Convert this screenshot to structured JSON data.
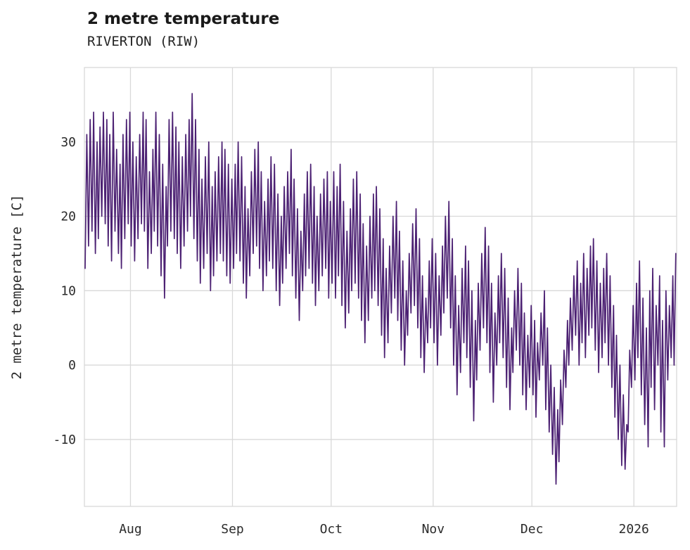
{
  "header": {
    "title": "2 metre temperature",
    "subtitle": "RIVERTON (RIW)"
  },
  "chart_data": {
    "type": "line",
    "title": "2 metre temperature",
    "subtitle": "RIVERTON (RIW)",
    "ylabel": "2 metre temperature [C]",
    "xlabel": "",
    "line_color": "#4c2173",
    "grid_color": "#d9d9d9",
    "background": "#ffffff",
    "legend": "none",
    "grid": true,
    "ylim": [
      -19,
      40
    ],
    "xlim": [
      0,
      180
    ],
    "y_ticks": [
      -10,
      0,
      10,
      20,
      30
    ],
    "x_ticks": [
      {
        "label": "Aug",
        "day": 14
      },
      {
        "label": "Sep",
        "day": 45
      },
      {
        "label": "Oct",
        "day": 75
      },
      {
        "label": "Nov",
        "day": 106
      },
      {
        "label": "Dec",
        "day": 136
      },
      {
        "label": "2026",
        "day": 167
      }
    ],
    "sampling": "daily min/max envelope of sub-daily temperature, day 0 = mid-July",
    "daily_max": [
      31,
      33,
      34,
      30,
      32,
      34,
      33,
      31,
      34,
      29,
      27,
      31,
      33,
      34,
      30,
      28,
      31,
      34,
      33,
      26,
      29,
      34,
      31,
      27,
      24,
      33,
      34,
      32,
      30,
      28,
      31,
      33,
      36.5,
      33,
      29,
      25,
      28,
      30,
      24,
      26,
      28,
      30,
      29,
      27,
      25,
      27,
      30,
      28,
      24,
      21,
      26,
      29,
      30,
      26,
      22,
      25,
      28,
      27,
      23,
      20,
      24,
      26,
      29,
      25,
      21,
      18,
      23,
      26,
      27,
      24,
      20,
      23,
      25,
      26,
      22,
      26,
      24,
      27,
      22,
      18,
      21,
      25,
      26,
      23,
      19,
      16,
      20,
      23,
      24,
      21,
      17,
      13,
      16,
      20,
      22,
      18,
      14,
      10,
      15,
      19,
      21,
      17,
      12,
      9,
      14,
      17,
      15,
      12,
      16,
      20,
      22,
      17,
      12,
      8,
      13,
      16,
      14,
      10,
      6,
      11,
      15,
      18.5,
      16,
      11,
      7,
      12,
      15,
      13,
      9,
      5,
      10,
      13,
      11,
      7,
      4,
      8,
      6,
      3,
      7,
      10,
      5,
      0,
      -3,
      -6,
      -2,
      2,
      6,
      9,
      12,
      14,
      11,
      15,
      13,
      16,
      17,
      14,
      11,
      13,
      15,
      12,
      8,
      4,
      0,
      -4,
      -8,
      2,
      8,
      11,
      14,
      9,
      5,
      10,
      13,
      8,
      12,
      6,
      10,
      8,
      12,
      15
    ],
    "daily_min": [
      13,
      16,
      18,
      15,
      17,
      20,
      19,
      16,
      14,
      18,
      15,
      13,
      17,
      19,
      16,
      14,
      17,
      19,
      18,
      13,
      15,
      18,
      16,
      12,
      9,
      16,
      18,
      17,
      15,
      13,
      16,
      18,
      20,
      17,
      14,
      11,
      13,
      15,
      10,
      12,
      14,
      15,
      14,
      12,
      11,
      13,
      15,
      14,
      11,
      9,
      12,
      15,
      16,
      13,
      10,
      12,
      14,
      13,
      10,
      8,
      11,
      13,
      15,
      12,
      9,
      6,
      10,
      12,
      13,
      11,
      8,
      10,
      12,
      13,
      9,
      11,
      9,
      12,
      8,
      5,
      7,
      10,
      11,
      9,
      6,
      3,
      6,
      9,
      10,
      8,
      4,
      1,
      3,
      7,
      9,
      6,
      2,
      0,
      4,
      7,
      8,
      5,
      1,
      -1,
      3,
      5,
      3,
      0,
      4,
      7,
      9,
      5,
      0,
      -4,
      -1,
      3,
      1,
      -3,
      -7.5,
      -2,
      2,
      5,
      3,
      -1,
      -5,
      0,
      3,
      1,
      -3,
      -6,
      -1,
      2,
      0,
      -4,
      -6,
      -3,
      -4,
      -7,
      -2,
      0,
      -6,
      -9,
      -12,
      -16,
      -13,
      -8,
      -3,
      0,
      2,
      4,
      0,
      3,
      1,
      4,
      5,
      2,
      -1,
      1,
      3,
      0,
      -3,
      -7,
      -10,
      -13.5,
      -14,
      -9,
      -3,
      -2,
      1,
      -4,
      -8,
      -11,
      -3,
      -6,
      0,
      -9,
      -11,
      -2,
      1,
      0
    ]
  }
}
